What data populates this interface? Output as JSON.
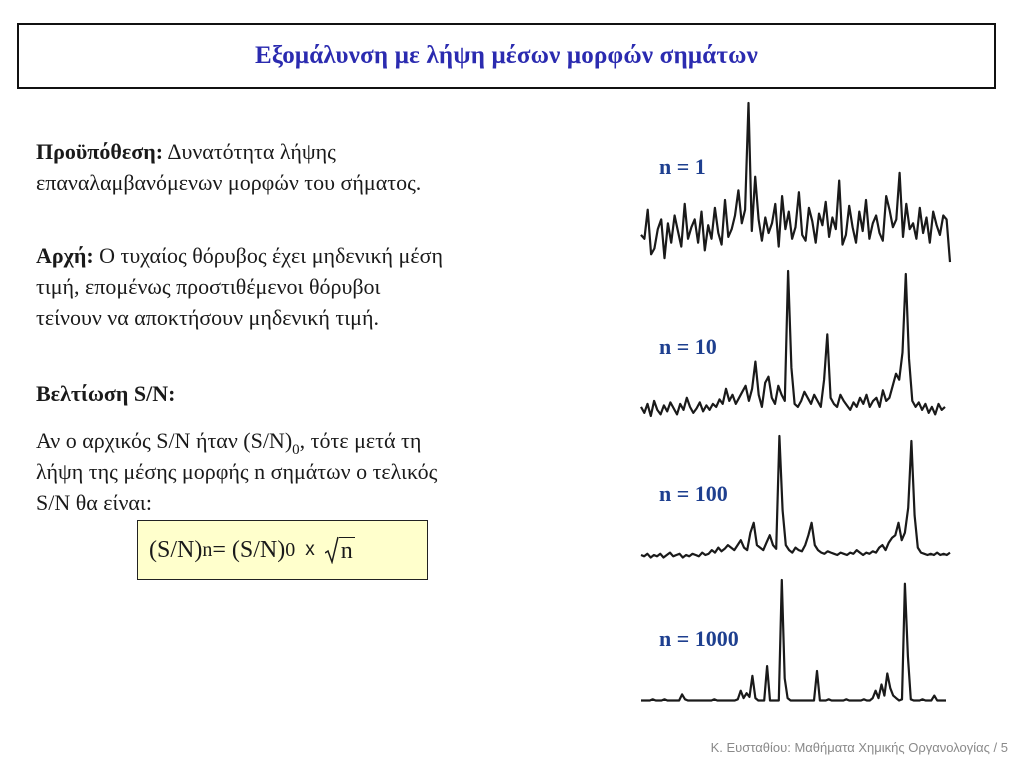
{
  "slide": {
    "title": "Εξομάλυνση με λήψη μέσων μορφών σημάτων",
    "paragraph_prerequisite": {
      "label": "Προϋπόθεση:",
      "line1_rest": " Δυνατότητα λήψης",
      "line2": "επαναλαμβανόμενων μορφών του σήματος."
    },
    "paragraph_principle": {
      "label": "Αρχή:",
      "line1_rest": " Ο τυχαίος θόρυβος έχει μηδενική μέση",
      "line2": "τιμή, επομένως προστιθέμενοι θόρυβοι",
      "line3": "τείνουν να αποκτήσουν μηδενική τιμή."
    },
    "improvement_heading": "Βελτίωση S/N:",
    "paragraph_improvement": {
      "part1": "Αν ο αρχικός S/N ήταν (S/N)",
      "sub0": "0",
      "part2": ", τότε μετά τη",
      "line2": "λήψη της μέσης μορφής n σημάτων ο τελικός",
      "line3": "S/N θα είναι:"
    },
    "formula": {
      "lhs": "(S/N)",
      "lhs_sub": "n",
      "equals": " = (S/N)",
      "rhs_sub": "0",
      "times": "x",
      "radicand": "n",
      "box_color": "#ffffcc"
    },
    "footer": "Κ. Ευσταθίου: Μαθήματα Χημικής Οργανολογίας / 5",
    "colors": {
      "title": "#2b2bb0",
      "labels": "#1e3f8f",
      "trace": "#1a1a1a"
    }
  },
  "chart_data": [
    {
      "type": "line",
      "name": "n = 1",
      "annotation": "n = 1",
      "values": [
        0.32,
        0.3,
        0.45,
        0.22,
        0.25,
        0.35,
        0.4,
        0.2,
        0.38,
        0.28,
        0.42,
        0.34,
        0.26,
        0.48,
        0.3,
        0.36,
        0.4,
        0.28,
        0.44,
        0.24,
        0.37,
        0.3,
        0.46,
        0.33,
        0.27,
        0.5,
        0.31,
        0.35,
        0.42,
        0.55,
        0.38,
        0.45,
        1.0,
        0.34,
        0.62,
        0.4,
        0.29,
        0.41,
        0.33,
        0.38,
        0.48,
        0.26,
        0.52,
        0.35,
        0.44,
        0.3,
        0.36,
        0.54,
        0.32,
        0.29,
        0.46,
        0.39,
        0.28,
        0.43,
        0.37,
        0.49,
        0.31,
        0.41,
        0.35,
        0.6,
        0.27,
        0.32,
        0.47,
        0.36,
        0.28,
        0.44,
        0.34,
        0.5,
        0.3,
        0.38,
        0.42,
        0.33,
        0.29,
        0.52,
        0.45,
        0.36,
        0.4,
        0.64,
        0.31,
        0.48,
        0.35,
        0.38,
        0.3,
        0.46,
        0.33,
        0.41,
        0.28,
        0.44,
        0.37,
        0.32,
        0.42,
        0.4,
        0.18
      ]
    },
    {
      "type": "line",
      "name": "n = 10",
      "annotation": "n = 10",
      "values": [
        0.1,
        0.06,
        0.12,
        0.04,
        0.14,
        0.08,
        0.05,
        0.11,
        0.07,
        0.13,
        0.09,
        0.05,
        0.12,
        0.08,
        0.16,
        0.1,
        0.06,
        0.09,
        0.13,
        0.07,
        0.11,
        0.08,
        0.12,
        0.1,
        0.15,
        0.12,
        0.22,
        0.14,
        0.18,
        0.12,
        0.16,
        0.2,
        0.24,
        0.14,
        0.22,
        0.4,
        0.18,
        0.1,
        0.26,
        0.3,
        0.16,
        0.12,
        0.24,
        0.18,
        0.14,
        1.0,
        0.36,
        0.12,
        0.1,
        0.14,
        0.2,
        0.16,
        0.12,
        0.18,
        0.14,
        0.1,
        0.28,
        0.58,
        0.16,
        0.12,
        0.1,
        0.18,
        0.14,
        0.11,
        0.08,
        0.13,
        0.1,
        0.16,
        0.12,
        0.18,
        0.1,
        0.14,
        0.16,
        0.1,
        0.21,
        0.14,
        0.16,
        0.24,
        0.32,
        0.28,
        0.46,
        0.98,
        0.42,
        0.14,
        0.1,
        0.13,
        0.08,
        0.12,
        0.06,
        0.1,
        0.05,
        0.12,
        0.08,
        0.1
      ]
    },
    {
      "type": "line",
      "name": "n = 100",
      "annotation": "n = 100",
      "values": [
        0.04,
        0.03,
        0.05,
        0.02,
        0.04,
        0.03,
        0.05,
        0.02,
        0.04,
        0.06,
        0.03,
        0.04,
        0.05,
        0.02,
        0.04,
        0.03,
        0.05,
        0.04,
        0.03,
        0.06,
        0.04,
        0.05,
        0.08,
        0.06,
        0.1,
        0.07,
        0.09,
        0.12,
        0.1,
        0.08,
        0.12,
        0.16,
        0.1,
        0.08,
        0.22,
        0.3,
        0.12,
        0.1,
        0.08,
        0.14,
        0.2,
        0.12,
        0.09,
        1.0,
        0.4,
        0.12,
        0.08,
        0.06,
        0.1,
        0.08,
        0.07,
        0.12,
        0.2,
        0.3,
        0.12,
        0.08,
        0.06,
        0.05,
        0.07,
        0.06,
        0.05,
        0.04,
        0.06,
        0.05,
        0.04,
        0.06,
        0.05,
        0.08,
        0.06,
        0.04,
        0.06,
        0.05,
        0.07,
        0.06,
        0.1,
        0.12,
        0.08,
        0.14,
        0.18,
        0.2,
        0.3,
        0.16,
        0.22,
        0.42,
        0.96,
        0.36,
        0.1,
        0.06,
        0.05,
        0.04,
        0.05,
        0.04,
        0.06,
        0.04,
        0.05,
        0.04,
        0.06
      ]
    },
    {
      "type": "line",
      "name": "n = 1000",
      "annotation": "n = 1000",
      "values": [
        0.02,
        0.02,
        0.02,
        0.02,
        0.03,
        0.02,
        0.02,
        0.02,
        0.03,
        0.02,
        0.02,
        0.02,
        0.02,
        0.02,
        0.07,
        0.03,
        0.02,
        0.02,
        0.02,
        0.02,
        0.02,
        0.02,
        0.02,
        0.02,
        0.02,
        0.03,
        0.02,
        0.02,
        0.02,
        0.02,
        0.02,
        0.02,
        0.02,
        0.03,
        0.1,
        0.04,
        0.08,
        0.05,
        0.22,
        0.04,
        0.02,
        0.02,
        0.02,
        0.3,
        0.02,
        0.02,
        0.02,
        0.02,
        1.0,
        0.2,
        0.04,
        0.02,
        0.02,
        0.02,
        0.02,
        0.02,
        0.02,
        0.02,
        0.02,
        0.02,
        0.26,
        0.02,
        0.02,
        0.02,
        0.03,
        0.02,
        0.02,
        0.02,
        0.02,
        0.02,
        0.03,
        0.02,
        0.02,
        0.02,
        0.02,
        0.02,
        0.03,
        0.02,
        0.02,
        0.04,
        0.1,
        0.04,
        0.15,
        0.06,
        0.24,
        0.12,
        0.06,
        0.04,
        0.02,
        0.03,
        0.97,
        0.38,
        0.03,
        0.02,
        0.02,
        0.02,
        0.03,
        0.02,
        0.02,
        0.02,
        0.06,
        0.02,
        0.02,
        0.02,
        0.02
      ]
    }
  ]
}
